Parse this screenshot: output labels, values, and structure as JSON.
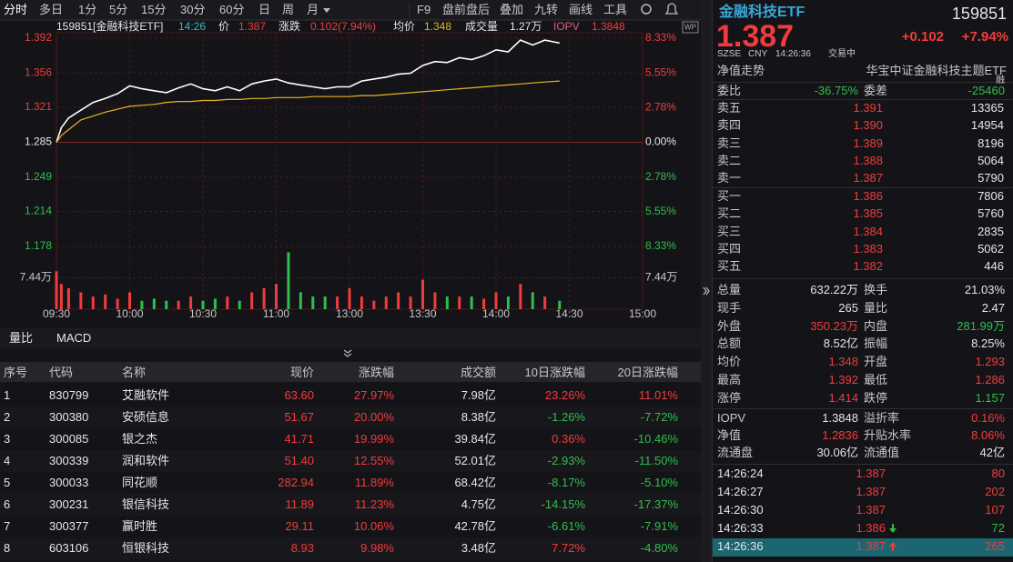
{
  "toolbar": {
    "periods": [
      "分时",
      "多日",
      "1分",
      "5分",
      "15分",
      "30分",
      "60分",
      "日",
      "周",
      "月"
    ],
    "tools": [
      "F9",
      "盘前盘后",
      "叠加",
      "九转",
      "画线",
      "工具"
    ]
  },
  "chart_badge": "WP",
  "chart_data": {
    "type": "line",
    "code": "159851[金融科技ETF]",
    "time": "14:26",
    "price_label": "价",
    "price": "1.387",
    "change_label": "涨跌",
    "change": "0.102(7.94%)",
    "avg_label": "均价",
    "avg": "1.348",
    "volume_label": "成交量",
    "volume": "1.27万",
    "iopv_label": "IOPV",
    "iopv": "1.3848",
    "x": [
      "09:30",
      "09:32",
      "09:35",
      "09:40",
      "09:45",
      "09:50",
      "09:55",
      "10:00",
      "10:05",
      "10:10",
      "10:15",
      "10:20",
      "10:25",
      "10:30",
      "10:35",
      "10:40",
      "10:45",
      "10:50",
      "10:55",
      "11:00",
      "11:05",
      "11:10",
      "11:15",
      "11:20",
      "11:25",
      "13:00",
      "13:05",
      "13:10",
      "13:15",
      "13:20",
      "13:25",
      "13:30",
      "13:35",
      "13:40",
      "13:45",
      "13:50",
      "13:55",
      "14:00",
      "14:05",
      "14:10",
      "14:15",
      "14:20",
      "14:26"
    ],
    "series": [
      {
        "color": "#ffffff",
        "values": [
          1.285,
          1.3,
          1.31,
          1.318,
          1.326,
          1.33,
          1.335,
          1.343,
          1.34,
          1.338,
          1.336,
          1.341,
          1.345,
          1.34,
          1.338,
          1.342,
          1.338,
          1.345,
          1.348,
          1.35,
          1.346,
          1.344,
          1.342,
          1.34,
          1.342,
          1.342,
          1.348,
          1.35,
          1.352,
          1.355,
          1.356,
          1.364,
          1.368,
          1.367,
          1.372,
          1.37,
          1.374,
          1.38,
          1.378,
          1.39,
          1.385,
          1.39,
          1.387
        ]
      },
      {
        "color": "#e6b422",
        "values": [
          1.285,
          1.292,
          1.298,
          1.308,
          1.312,
          1.316,
          1.319,
          1.322,
          1.323,
          1.324,
          1.326,
          1.327,
          1.327,
          1.328,
          1.328,
          1.329,
          1.329,
          1.33,
          1.33,
          1.331,
          1.331,
          1.331,
          1.332,
          1.332,
          1.332,
          1.332,
          1.333,
          1.333,
          1.334,
          1.335,
          1.336,
          1.337,
          1.338,
          1.339,
          1.34,
          1.341,
          1.342,
          1.343,
          1.344,
          1.345,
          1.346,
          1.347,
          1.348
        ]
      }
    ],
    "volume_values": [
      9,
      6,
      5,
      4,
      3,
      3.5,
      2.5,
      4,
      2,
      2.5,
      2,
      2,
      3,
      2,
      2.5,
      3,
      2,
      4,
      5,
      6,
      13.5,
      4,
      3,
      3,
      3,
      5,
      3,
      2,
      3,
      4,
      3,
      7,
      4,
      3,
      3,
      3,
      2.5,
      4,
      3,
      6,
      4,
      3,
      2
    ],
    "volume_ylim": [
      0,
      14.88
    ],
    "volume_yticks": [
      {
        "value": 7.44,
        "label": "7.44万"
      }
    ],
    "ylim": [
      1.178,
      1.392
    ],
    "yticks": [
      1.392,
      1.356,
      1.321,
      1.285,
      1.249,
      1.214,
      1.178
    ],
    "y2lim": [
      -8.33,
      8.33
    ],
    "y2ticks": [
      {
        "value": 8.33,
        "label": "8.33%"
      },
      {
        "value": 5.55,
        "label": "5.55%"
      },
      {
        "value": 2.78,
        "label": "2.78%"
      },
      {
        "value": 0,
        "label": "0.00%"
      },
      {
        "value": -2.78,
        "label": "2.78%"
      },
      {
        "value": -5.55,
        "label": "5.55%"
      },
      {
        "value": -8.33,
        "label": "8.33%"
      }
    ],
    "xticks": [
      "09:30",
      "10:00",
      "10:30",
      "11:00",
      "13:00",
      "13:30",
      "14:00",
      "14:30",
      "15:00"
    ],
    "grid": true
  },
  "lower_tabs": [
    "量比",
    "MACD"
  ],
  "table": {
    "columns": [
      "序号",
      "代码",
      "名称",
      "现价",
      "涨跌幅",
      "成交额",
      "10日涨跌幅",
      "20日涨跌幅"
    ],
    "rows": [
      [
        "1",
        "830799",
        "艾融软件",
        "63.60",
        "27.97%",
        "7.98亿",
        "23.26%",
        "11.01%"
      ],
      [
        "2",
        "300380",
        "安硕信息",
        "51.67",
        "20.00%",
        "8.38亿",
        "-1.26%",
        "-7.72%"
      ],
      [
        "3",
        "300085",
        "银之杰",
        "41.71",
        "19.99%",
        "39.84亿",
        "0.36%",
        "-10.46%"
      ],
      [
        "4",
        "300339",
        "润和软件",
        "51.40",
        "12.55%",
        "52.01亿",
        "-2.93%",
        "-11.50%"
      ],
      [
        "5",
        "300033",
        "同花顺",
        "282.94",
        "11.89%",
        "68.42亿",
        "-8.17%",
        "-5.10%"
      ],
      [
        "6",
        "300231",
        "银信科技",
        "11.89",
        "11.23%",
        "4.75亿",
        "-14.15%",
        "-17.37%"
      ],
      [
        "7",
        "300377",
        "赢时胜",
        "29.11",
        "10.06%",
        "42.78亿",
        "-6.61%",
        "-7.91%"
      ],
      [
        "8",
        "603106",
        "恒银科技",
        "8.93",
        "9.98%",
        "3.48亿",
        "7.72%",
        "-4.80%"
      ]
    ]
  },
  "quote": {
    "name": "金融科技ETF",
    "code": "159851",
    "price": "1.387",
    "change": "+0.102",
    "change_pct": "+7.94%",
    "exchange": "SZSE",
    "currency": "CNY",
    "time": "14:26:36",
    "status": "交易中",
    "nav_link": "净值走势",
    "full_name": "华宝中证金融科技主题ETF",
    "margin": "融"
  },
  "order_ratio": [
    {
      "label": "委比",
      "value": "-36.75%"
    },
    {
      "label": "委差",
      "value": "-25460"
    }
  ],
  "asks": [
    {
      "label": "卖五",
      "price": "1.391",
      "volume": "13365"
    },
    {
      "label": "卖四",
      "price": "1.390",
      "volume": "14954"
    },
    {
      "label": "卖三",
      "price": "1.389",
      "volume": "8196"
    },
    {
      "label": "卖二",
      "price": "1.388",
      "volume": "5064"
    },
    {
      "label": "卖一",
      "price": "1.387",
      "volume": "5790"
    }
  ],
  "bids": [
    {
      "label": "买一",
      "price": "1.386",
      "volume": "7806"
    },
    {
      "label": "买二",
      "price": "1.385",
      "volume": "5760"
    },
    {
      "label": "买三",
      "price": "1.384",
      "volume": "2835"
    },
    {
      "label": "买四",
      "price": "1.383",
      "volume": "5062"
    },
    {
      "label": "买五",
      "price": "1.382",
      "volume": "446"
    }
  ],
  "stats": [
    [
      {
        "label": "总量",
        "value": "632.22万",
        "tone": "flat"
      },
      {
        "label": "换手",
        "value": "21.03%",
        "tone": "flat"
      }
    ],
    [
      {
        "label": "现手",
        "value": "265",
        "tone": "flat"
      },
      {
        "label": "量比",
        "value": "2.47",
        "tone": "flat"
      }
    ],
    [
      {
        "label": "外盘",
        "value": "350.23万",
        "tone": "up"
      },
      {
        "label": "内盘",
        "value": "281.99万",
        "tone": "down"
      }
    ],
    [
      {
        "label": "总额",
        "value": "8.52亿",
        "tone": "flat"
      },
      {
        "label": "振幅",
        "value": "8.25%",
        "tone": "flat"
      }
    ],
    [
      {
        "label": "均价",
        "value": "1.348",
        "tone": "up"
      },
      {
        "label": "开盘",
        "value": "1.293",
        "tone": "up"
      }
    ],
    [
      {
        "label": "最高",
        "value": "1.392",
        "tone": "up"
      },
      {
        "label": "最低",
        "value": "1.286",
        "tone": "up"
      }
    ],
    [
      {
        "label": "涨停",
        "value": "1.414",
        "tone": "up"
      },
      {
        "label": "跌停",
        "value": "1.157",
        "tone": "down"
      }
    ]
  ],
  "nav_stats": [
    [
      {
        "label": "IOPV",
        "value": "1.3848",
        "tone": "flat"
      },
      {
        "label": "溢折率",
        "value": "0.16%",
        "tone": "up"
      }
    ],
    [
      {
        "label": "净值",
        "value": "1.2836",
        "tone": "up"
      },
      {
        "label": "升贴水率",
        "value": "8.06%",
        "tone": "up"
      }
    ],
    [
      {
        "label": "流通盘",
        "value": "30.06亿",
        "tone": "flat"
      },
      {
        "label": "流通值",
        "value": "42亿",
        "tone": "flat"
      }
    ]
  ],
  "trades": [
    {
      "time": "14:26:24",
      "price": "1.387",
      "volume": "80",
      "tone": "up"
    },
    {
      "time": "14:26:27",
      "price": "1.387",
      "volume": "202",
      "tone": "up"
    },
    {
      "time": "14:26:30",
      "price": "1.387",
      "volume": "107",
      "tone": "up"
    },
    {
      "time": "14:26:33",
      "price": "1.386",
      "volume": "72",
      "tone": "down"
    },
    {
      "time": "14:26:36",
      "price": "1.387",
      "volume": "265",
      "tone": "up"
    }
  ]
}
